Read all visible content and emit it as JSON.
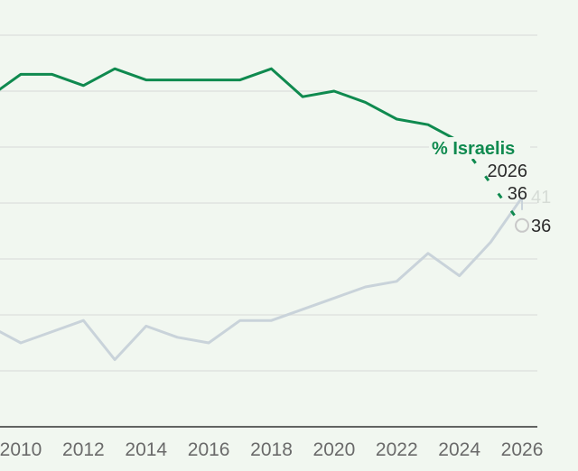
{
  "chart_data": {
    "type": "line",
    "title": "",
    "xlabel": "",
    "ylabel": "",
    "xlim": [
      2009.35,
      2026.5
    ],
    "ylim": [
      0,
      70
    ],
    "grid": true,
    "yticks": [
      0,
      10,
      20,
      30,
      40,
      50,
      60,
      70
    ],
    "xticks": [
      "2010",
      "2012",
      "2014",
      "2016",
      "2018",
      "2020",
      "2022",
      "2024",
      "2026"
    ],
    "series": [
      {
        "name": "% Israelis",
        "color": "#0f8a4f",
        "x": [
          2009,
          2010,
          2011,
          2012,
          2013,
          2014,
          2015,
          2016,
          2017,
          2018,
          2019,
          2020,
          2021,
          2022,
          2023,
          2024,
          2026
        ],
        "values": [
          59,
          63,
          63,
          61,
          64,
          62,
          62,
          62,
          62,
          64,
          59,
          60,
          58,
          55,
          54,
          51,
          36
        ]
      },
      {
        "color": "#c9d3da",
        "x": [
          2009,
          2010,
          2011,
          2012,
          2013,
          2014,
          2015,
          2016,
          2017,
          2018,
          2019,
          2020,
          2021,
          2022,
          2023,
          2024,
          2025,
          2026
        ],
        "values": [
          18,
          15,
          17,
          19,
          12,
          18,
          16,
          15,
          19,
          19,
          21,
          23,
          25,
          26,
          31,
          27,
          33,
          41
        ]
      }
    ],
    "annotations": {
      "series_label": "% Israelis",
      "hover_year": "2026",
      "hover_value": "36",
      "end_label_green": "36",
      "end_label_gray": "41"
    }
  }
}
